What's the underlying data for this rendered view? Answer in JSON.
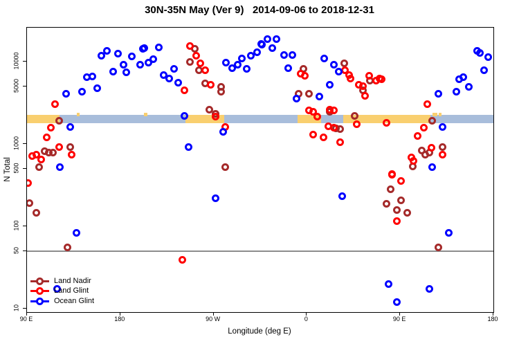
{
  "title": "30N-35N May (Ver 9)   2014-09-06 to 2018-12-31",
  "chart_data": {
    "type": "scatter",
    "title": "30N-35N May (Ver 9)   2014-09-06 to 2018-12-31",
    "xlabel": "Longitude (deg E)",
    "ylabel": "N Total",
    "x_axis_note": "longitude wraps: 90E to 180 to 90W to 0 to 90E to 180, stored as 90..540 deg E",
    "x_range": [
      90,
      540
    ],
    "y_scale": "log10",
    "y_range": [
      9,
      26000
    ],
    "grid": "off",
    "legend_position": "bottom-left-inside",
    "x_ticks": [
      {
        "lon": 90,
        "label": "90 E"
      },
      {
        "lon": 180,
        "label": "180"
      },
      {
        "lon": 270,
        "label": "90 W"
      },
      {
        "lon": 360,
        "label": "0"
      },
      {
        "lon": 450,
        "label": "90 E"
      },
      {
        "lon": 540,
        "label": "180"
      }
    ],
    "y_ticks": [
      {
        "n": 10,
        "label": "10"
      },
      {
        "n": 50,
        "label": "50"
      },
      {
        "n": 100,
        "label": "100"
      },
      {
        "n": 500,
        "label": "500"
      },
      {
        "n": 1000,
        "label": "1000"
      },
      {
        "n": 5000,
        "label": "5000"
      },
      {
        "n": 10000,
        "label": "10000"
      }
    ],
    "reference_line": {
      "n": 50,
      "color": "#8c8c8c"
    },
    "band": {
      "description": "land/ocean strip map along 30N-35N latitude band",
      "center_n": 2000,
      "thickness_px": 12,
      "ocean_color": "#a8bddb",
      "land_color": "#f9cf6f",
      "ocean_range_lon": [
        90,
        540
      ],
      "land_segments_lon": [
        [
          90,
          121.5
        ],
        [
          243,
          280
        ],
        [
          351,
          374
        ],
        [
          395,
          479
        ]
      ],
      "island_segments_lon": [
        [
          138,
          141
        ],
        [
          203,
          206
        ],
        [
          481,
          486
        ],
        [
          487,
          490
        ]
      ]
    },
    "series": [
      {
        "name": "Land Nadir",
        "color": "#a52a2a",
        "points": [
          [
            121,
            1930
          ],
          [
            107,
            809
          ],
          [
            111,
            778
          ],
          [
            115,
            778
          ],
          [
            132,
            925
          ],
          [
            102,
            528
          ],
          [
            92,
            193
          ],
          [
            99,
            147
          ],
          [
            129,
            55
          ],
          [
            252,
            14400
          ],
          [
            247,
            10000
          ],
          [
            256,
            7780
          ],
          [
            262,
            5480
          ],
          [
            277,
            4980
          ],
          [
            277,
            4350
          ],
          [
            266,
            2630
          ],
          [
            272,
            2340
          ],
          [
            281,
            528
          ],
          [
            357,
            8240
          ],
          [
            396,
            9440
          ],
          [
            352,
            4100
          ],
          [
            362,
            4100
          ],
          [
            382,
            2480
          ],
          [
            406,
            2170
          ],
          [
            388,
            1560
          ],
          [
            392,
            1530
          ],
          [
            421,
            5820
          ],
          [
            414,
            4440
          ],
          [
            481,
            1930
          ],
          [
            471,
            840
          ],
          [
            474,
            748
          ],
          [
            478,
            778
          ],
          [
            491,
            925
          ],
          [
            462,
            538
          ],
          [
            441,
            284
          ],
          [
            437,
            186
          ],
          [
            451,
            205
          ],
          [
            447,
            159
          ],
          [
            457,
            145
          ],
          [
            487,
            55
          ]
        ]
      },
      {
        "name": "Land Glint",
        "color": "#ff0000",
        "points": [
          [
            117,
            3070
          ],
          [
            113,
            1590
          ],
          [
            109,
            1210
          ],
          [
            121,
            925
          ],
          [
            99,
            734
          ],
          [
            95,
            706
          ],
          [
            104,
            653
          ],
          [
            133,
            748
          ],
          [
            91,
            338
          ],
          [
            247,
            15600
          ],
          [
            253,
            11700
          ],
          [
            257,
            9620
          ],
          [
            262,
            7780
          ],
          [
            267,
            5180
          ],
          [
            242,
            4520
          ],
          [
            272,
            2130
          ],
          [
            281,
            1620
          ],
          [
            240,
            39
          ],
          [
            354,
            7190
          ],
          [
            358,
            6670
          ],
          [
            397,
            7780
          ],
          [
            401,
            6920
          ],
          [
            402,
            6170
          ],
          [
            420,
            6790
          ],
          [
            427,
            5930
          ],
          [
            410,
            5180
          ],
          [
            414,
            5080
          ],
          [
            416,
            3870
          ],
          [
            362,
            2580
          ],
          [
            366,
            2440
          ],
          [
            370,
            2130
          ],
          [
            382,
            2630
          ],
          [
            386,
            2580
          ],
          [
            381,
            1650
          ],
          [
            386,
            1590
          ],
          [
            408,
            1720
          ],
          [
            366,
            1310
          ],
          [
            376,
            1210
          ],
          [
            392,
            1040
          ],
          [
            430,
            6280
          ],
          [
            432,
            6050
          ],
          [
            476,
            3070
          ],
          [
            437,
            1790
          ],
          [
            473,
            1590
          ],
          [
            467,
            1240
          ],
          [
            480,
            891
          ],
          [
            461,
            692
          ],
          [
            463,
            628
          ],
          [
            491,
            748
          ],
          [
            442,
            427
          ],
          [
            442,
            419
          ],
          [
            451,
            352
          ],
          [
            447,
            115
          ]
        ]
      },
      {
        "name": "Ocean Glint",
        "color": "#0000ff",
        "points": [
          [
            162,
            11900
          ],
          [
            167,
            13400
          ],
          [
            178,
            12400
          ],
          [
            183,
            9250
          ],
          [
            191,
            11500
          ],
          [
            199,
            9250
          ],
          [
            202,
            14400
          ],
          [
            186,
            7480
          ],
          [
            173,
            7620
          ],
          [
            148,
            6410
          ],
          [
            153,
            6660
          ],
          [
            158,
            4790
          ],
          [
            143,
            4350
          ],
          [
            128,
            4100
          ],
          [
            132,
            1620
          ],
          [
            122,
            528
          ],
          [
            203,
            14700
          ],
          [
            217,
            15000
          ],
          [
            207,
            9800
          ],
          [
            212,
            10800
          ],
          [
            222,
            6920
          ],
          [
            232,
            8090
          ],
          [
            227,
            6280
          ],
          [
            236,
            5590
          ],
          [
            282,
            9800
          ],
          [
            288,
            8390
          ],
          [
            293,
            9080
          ],
          [
            297,
            11000
          ],
          [
            302,
            8090
          ],
          [
            306,
            11900
          ],
          [
            312,
            13100
          ],
          [
            316,
            16500
          ],
          [
            242,
            2170
          ],
          [
            279,
            1390
          ],
          [
            246,
            925
          ],
          [
            272,
            221
          ],
          [
            322,
            18900
          ],
          [
            317,
            16200
          ],
          [
            331,
            18600
          ],
          [
            327,
            14700
          ],
          [
            338,
            12100
          ],
          [
            346,
            12100
          ],
          [
            342,
            8390
          ],
          [
            377,
            11000
          ],
          [
            386,
            9250
          ],
          [
            391,
            7620
          ],
          [
            382,
            5180
          ],
          [
            372,
            3800
          ],
          [
            350,
            3520
          ],
          [
            394,
            230
          ],
          [
            524,
            13600
          ],
          [
            527,
            12850
          ],
          [
            535,
            11450
          ],
          [
            531,
            7780
          ],
          [
            507,
            6050
          ],
          [
            511,
            6530
          ],
          [
            516,
            4890
          ],
          [
            504,
            4350
          ],
          [
            487,
            4100
          ],
          [
            491,
            1620
          ],
          [
            481,
            528
          ],
          [
            497,
            84
          ],
          [
            439,
            20
          ],
          [
            478,
            17.5
          ],
          [
            447,
            12
          ],
          [
            138,
            84
          ],
          [
            119,
            17.5
          ]
        ]
      }
    ]
  },
  "legend": {
    "items": [
      {
        "label": "Land Nadir"
      },
      {
        "label": "Land Glint"
      },
      {
        "label": "Ocean Glint"
      }
    ]
  }
}
